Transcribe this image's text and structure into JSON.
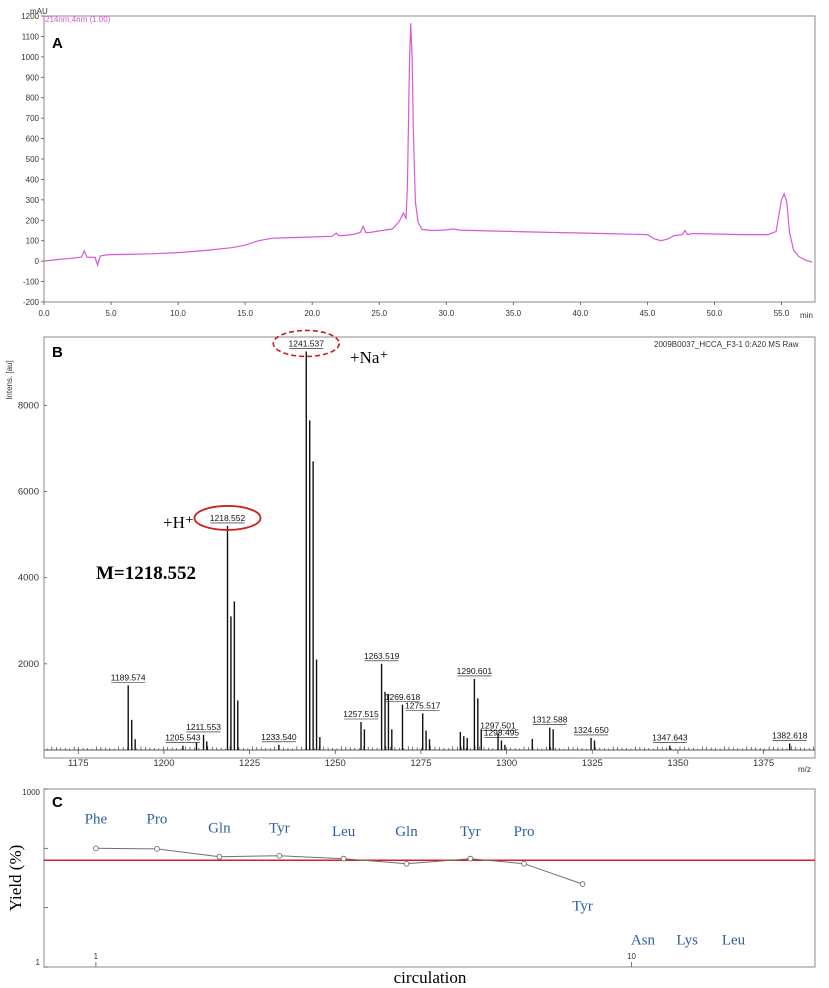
{
  "chart_data": [
    {
      "type": "line",
      "panel_label": "A",
      "y_unit": "mAU",
      "legend": "214nm,4nm (1.00)",
      "x_unit": "min",
      "xlim": [
        0,
        57.5
      ],
      "ylim": [
        -200,
        1200
      ],
      "x_ticks": [
        "0.0",
        "5.0",
        "10.0",
        "15.0",
        "20.0",
        "25.0",
        "30.0",
        "35.0",
        "40.0",
        "45.0",
        "50.0",
        "55.0"
      ],
      "y_ticks": [
        "-200",
        "-100",
        "0",
        "100",
        "200",
        "300",
        "400",
        "500",
        "600",
        "700",
        "800",
        "900",
        "1000",
        "1100",
        "1200"
      ],
      "colors": {
        "trace": "#d65ad6"
      },
      "series": [
        {
          "x": [
            0,
            1,
            2,
            2.8,
            3.0,
            3.2,
            3.8,
            4.0,
            4.2,
            4.6,
            5,
            6,
            8,
            10,
            12,
            14,
            15,
            16,
            17,
            17.8,
            18.5,
            20,
            21.5,
            21.8,
            22.0,
            22.2,
            23,
            23.6,
            23.8,
            24.0,
            24.3,
            25,
            26,
            26.5,
            26.8,
            27.0,
            27.1,
            27.25,
            27.35,
            27.45,
            27.55,
            27.7,
            27.9,
            28.2,
            29,
            30,
            30.5,
            31,
            33,
            35,
            38,
            40,
            42,
            45,
            45.5,
            46,
            46.5,
            47,
            47.6,
            47.8,
            48.0,
            48.3,
            49,
            50,
            52,
            54,
            54.6,
            55.0,
            55.2,
            55.4,
            55.6,
            55.9,
            56.3,
            56.8,
            57.3
          ],
          "y": [
            0,
            8,
            14,
            20,
            50,
            20,
            18,
            -20,
            25,
            30,
            32,
            33,
            36,
            42,
            52,
            66,
            78,
            100,
            112,
            114,
            115,
            118,
            122,
            138,
            125,
            125,
            130,
            140,
            170,
            140,
            140,
            148,
            158,
            195,
            235,
            210,
            360,
            950,
            1165,
            1000,
            620,
            290,
            190,
            155,
            150,
            153,
            158,
            152,
            148,
            145,
            140,
            138,
            135,
            130,
            110,
            100,
            108,
            125,
            130,
            150,
            130,
            135,
            135,
            133,
            130,
            130,
            145,
            300,
            330,
            290,
            140,
            55,
            22,
            5,
            -5
          ]
        }
      ],
      "annotations": []
    },
    {
      "type": "bar",
      "panel_label": "B",
      "ylabel": "Intens. [au]",
      "xlabel": "m/z",
      "header": "2009B0037_HCCA_F3-1 0:A20 MS Raw",
      "xlim": [
        1165,
        1390
      ],
      "ylim": [
        0,
        9400
      ],
      "x_ticks": [
        1175,
        1200,
        1225,
        1250,
        1275,
        1300,
        1325,
        1350,
        1375
      ],
      "y_ticks": [
        2000,
        4000,
        6000,
        8000
      ],
      "colors": {
        "highlight": "#cc1f1f"
      },
      "peaks_mz": [
        1189.574,
        1190.6,
        1191.6,
        1205.543,
        1209.5,
        1211.553,
        1212.5,
        1218.552,
        1219.55,
        1220.55,
        1221.55,
        1233.54,
        1241.537,
        1242.54,
        1243.54,
        1244.54,
        1245.5,
        1257.515,
        1258.5,
        1263.519,
        1264.52,
        1265.52,
        1266.5,
        1269.618,
        1275.517,
        1276.5,
        1277.5,
        1286.5,
        1287.5,
        1288.5,
        1290.601,
        1291.6,
        1292.6,
        1297.501,
        1298.495,
        1299.5,
        1307.5,
        1312.588,
        1313.59,
        1324.65,
        1325.65,
        1347.643,
        1382.618
      ],
      "peaks_int": [
        1500,
        700,
        250,
        100,
        180,
        350,
        200,
        5200,
        3100,
        3450,
        1150,
        120,
        9250,
        7650,
        6700,
        2100,
        300,
        650,
        480,
        2000,
        1350,
        1300,
        480,
        1050,
        850,
        450,
        250,
        420,
        320,
        280,
        1650,
        1200,
        480,
        380,
        220,
        120,
        260,
        520,
        480,
        280,
        220,
        100,
        150
      ],
      "labels": [
        "1189.574",
        "1205.543",
        "1211.553",
        "1218.552",
        "1233.540",
        "1241.537",
        "1257.515",
        "1263.519",
        "1269.618",
        "1275.517",
        "1290.601",
        "1297.501",
        "1298.495",
        "1312.588",
        "1324.650",
        "1347.643",
        "1382.618"
      ],
      "annotations": {
        "h_ion": "+H⁺",
        "na_ion": "+Na⁺",
        "mass": "M=1218.552"
      }
    },
    {
      "type": "line",
      "panel_label": "C",
      "ylabel": "Yield (%)",
      "xlabel": "circulation",
      "x_scale": "log",
      "y_scale": "log",
      "xlim": [
        0.8,
        22
      ],
      "ylim": [
        1,
        1000
      ],
      "x_ticks": [
        "1",
        "10"
      ],
      "y_ticks": [
        "1000",
        "1"
      ],
      "colors": {
        "series": "#707070",
        "threshold": "#d42222",
        "residue": "#2e5f9e"
      },
      "threshold_y": 63,
      "series": [
        {
          "x": [
            1,
            1.3,
            1.7,
            2.2,
            2.9,
            3.8,
            5,
            6.3,
            8.1
          ],
          "y": [
            100,
            98,
            72,
            75,
            67,
            55,
            67,
            55,
            25
          ]
        }
      ],
      "residues": [
        {
          "label": "Phe",
          "x": 1,
          "y": 260
        },
        {
          "label": "Pro",
          "x": 1.3,
          "y": 260
        },
        {
          "label": "Gln",
          "x": 1.7,
          "y": 185
        },
        {
          "label": "Tyr",
          "x": 2.2,
          "y": 185
        },
        {
          "label": "Leu",
          "x": 2.9,
          "y": 160
        },
        {
          "label": "Gln",
          "x": 3.8,
          "y": 160
        },
        {
          "label": "Tyr",
          "x": 5,
          "y": 160
        },
        {
          "label": "Pro",
          "x": 6.3,
          "y": 160
        },
        {
          "label": "Tyr",
          "x": 8.1,
          "y": 9
        },
        {
          "label": "Asn",
          "x": 10.5,
          "y": 2.4
        },
        {
          "label": "Lys",
          "x": 12.7,
          "y": 2.4
        },
        {
          "label": "Leu",
          "x": 15.5,
          "y": 2.4
        }
      ]
    }
  ]
}
